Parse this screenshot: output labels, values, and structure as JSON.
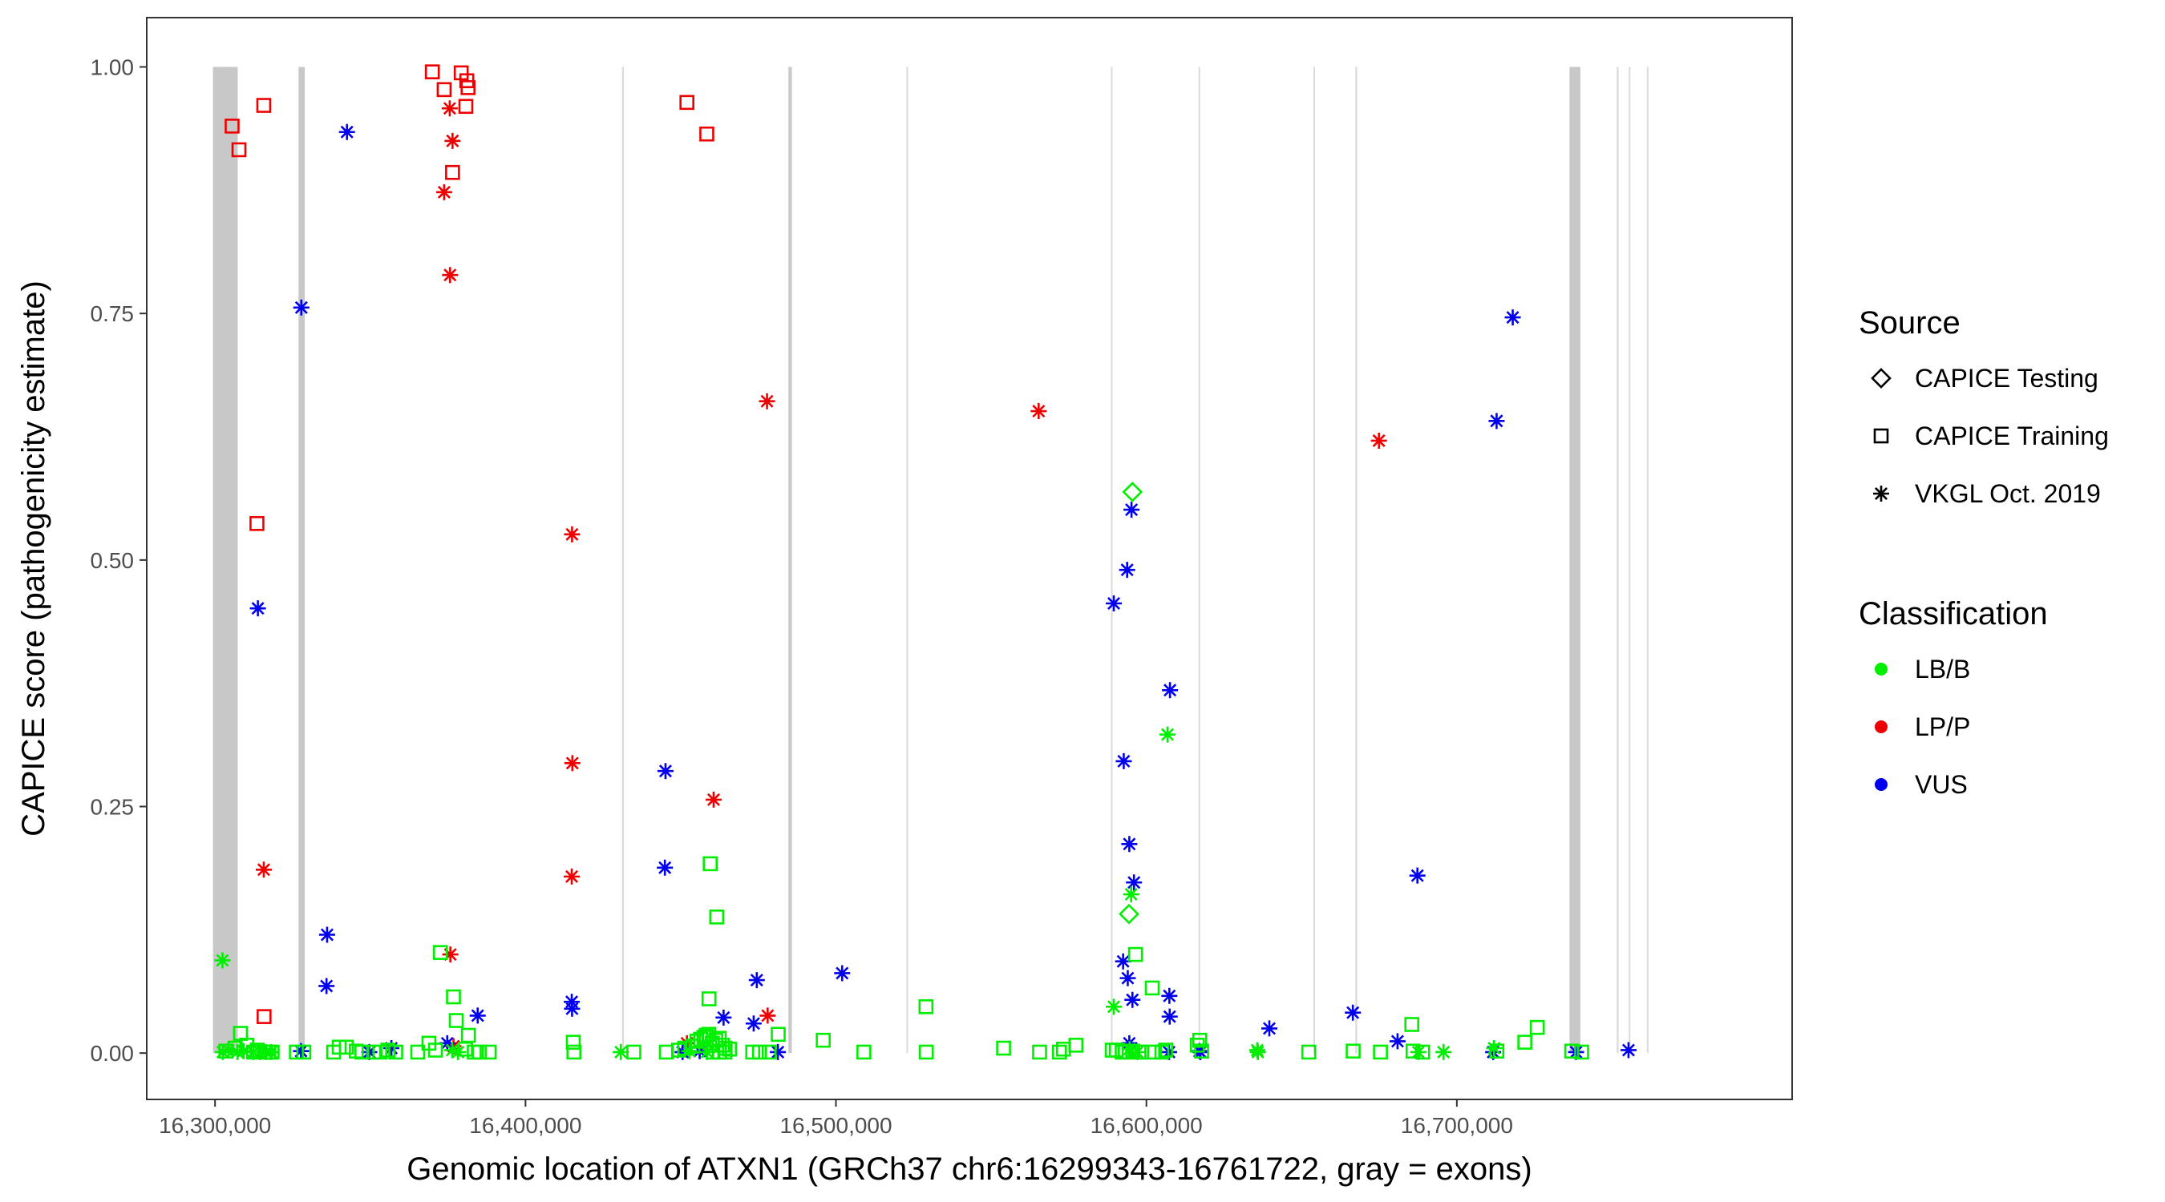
{
  "chart_data": {
    "type": "scatter",
    "title": "",
    "xlabel": "Genomic location of ATXN1 (GRCh37 chr6:16299343-16761722, gray = exons)",
    "ylabel": "CAPICE score (pathogenicity estimate)",
    "xlim": [
      16278000,
      16808000
    ],
    "ylim": [
      -0.047,
      1.05
    ],
    "x_ticks": [
      16300000,
      16400000,
      16500000,
      16600000,
      16700000
    ],
    "x_tick_labels": [
      "16,300,000",
      "16,400,000",
      "16,500,000",
      "16,600,000",
      "16,700,000"
    ],
    "y_ticks": [
      0,
      0.25,
      0.5,
      0.75,
      1.0
    ],
    "y_tick_labels": [
      "0.00",
      "0.25",
      "0.50",
      "0.75",
      "1.00"
    ],
    "grid": false,
    "exons": [
      {
        "start": 16299343,
        "end": 16307300
      },
      {
        "start": 16326900,
        "end": 16328900
      },
      {
        "start": 16431100,
        "end": 16431700
      },
      {
        "start": 16484700,
        "end": 16485800
      },
      {
        "start": 16522700,
        "end": 16523100
      },
      {
        "start": 16588600,
        "end": 16589100
      },
      {
        "start": 16616800,
        "end": 16617200
      },
      {
        "start": 16653800,
        "end": 16654200
      },
      {
        "start": 16667300,
        "end": 16667900
      },
      {
        "start": 16736300,
        "end": 16739800
      },
      {
        "start": 16751500,
        "end": 16752100
      },
      {
        "start": 16755400,
        "end": 16755900
      },
      {
        "start": 16761200,
        "end": 16761722
      }
    ],
    "legend": {
      "position": "right",
      "shape_title": "Source",
      "shape_entries": [
        {
          "label": "CAPICE Testing",
          "shape": "diamond"
        },
        {
          "label": "CAPICE Training",
          "shape": "square"
        },
        {
          "label": "VKGL Oct. 2019",
          "shape": "asterisk"
        }
      ],
      "color_title": "Classification",
      "color_entries": [
        {
          "label": "LB/B",
          "color": "#00ee00"
        },
        {
          "label": "LP/P",
          "color": "#ee0000"
        },
        {
          "label": "VUS",
          "color": "#0000ee"
        }
      ]
    },
    "series": [
      {
        "source": "CAPICE Training",
        "classification": "LP/P",
        "shape": "square",
        "color": "#ee0000",
        "points": [
          [
            16305500,
            0.94
          ],
          [
            16307700,
            0.916
          ],
          [
            16315700,
            0.961
          ],
          [
            16313500,
            0.537
          ],
          [
            16315800,
            0.037
          ],
          [
            16370000,
            0.995
          ],
          [
            16373800,
            0.977
          ],
          [
            16376500,
            0.893
          ],
          [
            16379300,
            0.994
          ],
          [
            16381100,
            0.986
          ],
          [
            16381500,
            0.979
          ],
          [
            16380800,
            0.96
          ],
          [
            16452000,
            0.964
          ],
          [
            16458400,
            0.932
          ]
        ]
      },
      {
        "source": "VKGL Oct. 2019",
        "classification": "LP/P",
        "shape": "asterisk",
        "color": "#ee0000",
        "points": [
          [
            16315700,
            0.186
          ],
          [
            16373800,
            0.873
          ],
          [
            16375600,
            0.958
          ],
          [
            16376500,
            0.925
          ],
          [
            16375700,
            0.789
          ],
          [
            16375800,
            0.1
          ],
          [
            16376800,
            0.007
          ],
          [
            16415000,
            0.526
          ],
          [
            16415100,
            0.294
          ],
          [
            16414900,
            0.179
          ],
          [
            16460600,
            0.257
          ],
          [
            16477800,
            0.661
          ],
          [
            16478000,
            0.038
          ],
          [
            16452000,
            0.01
          ],
          [
            16565300,
            0.651
          ],
          [
            16674900,
            0.621
          ]
        ]
      },
      {
        "source": "VKGL Oct. 2019",
        "classification": "VUS",
        "shape": "asterisk",
        "color": "#0000ee",
        "points": [
          [
            16342500,
            0.934
          ],
          [
            16327800,
            0.756
          ],
          [
            16313800,
            0.451
          ],
          [
            16336100,
            0.12
          ],
          [
            16335900,
            0.068
          ],
          [
            16384600,
            0.038
          ],
          [
            16374800,
            0.01
          ],
          [
            16327700,
            0.002
          ],
          [
            16349700,
            0.001
          ],
          [
            16356800,
            0.005
          ],
          [
            16414900,
            0.052
          ],
          [
            16415000,
            0.045
          ],
          [
            16445100,
            0.286
          ],
          [
            16444900,
            0.188
          ],
          [
            16474500,
            0.074
          ],
          [
            16463800,
            0.036
          ],
          [
            16473500,
            0.03
          ],
          [
            16450600,
            0.001
          ],
          [
            16456100,
            0.002
          ],
          [
            16481300,
            0.001
          ],
          [
            16502000,
            0.081
          ],
          [
            16589500,
            0.456
          ],
          [
            16593800,
            0.49
          ],
          [
            16595200,
            0.551
          ],
          [
            16607600,
            0.368
          ],
          [
            16592700,
            0.296
          ],
          [
            16594500,
            0.212
          ],
          [
            16596000,
            0.173
          ],
          [
            16592500,
            0.093
          ],
          [
            16594000,
            0.076
          ],
          [
            16595500,
            0.054
          ],
          [
            16607400,
            0.058
          ],
          [
            16607500,
            0.037
          ],
          [
            16594500,
            0.01
          ],
          [
            16607300,
            0.001
          ],
          [
            16617400,
            0.001
          ],
          [
            16617100,
            0.002
          ],
          [
            16639600,
            0.025
          ],
          [
            16666500,
            0.041
          ],
          [
            16680900,
            0.012
          ],
          [
            16687300,
            0.18
          ],
          [
            16712800,
            0.641
          ],
          [
            16718000,
            0.746
          ],
          [
            16711700,
            0.001
          ],
          [
            16738400,
            0.001
          ],
          [
            16755300,
            0.003
          ]
        ]
      },
      {
        "source": "CAPICE Training",
        "classification": "LB/B",
        "shape": "square",
        "color": "#00ee00",
        "points": [
          [
            16303500,
            0.002
          ],
          [
            16306500,
            0.005
          ],
          [
            16308200,
            0.02
          ],
          [
            16310200,
            0.008
          ],
          [
            16312400,
            0.001
          ],
          [
            16313600,
            0.003
          ],
          [
            16316300,
            0.001
          ],
          [
            16317300,
            0.001
          ],
          [
            16318400,
            0.001
          ],
          [
            16326200,
            0.001
          ],
          [
            16328600,
            0.001
          ],
          [
            16338200,
            0.001
          ],
          [
            16340000,
            0.006
          ],
          [
            16342300,
            0.006
          ],
          [
            16345500,
            0.002
          ],
          [
            16347300,
            0.001
          ],
          [
            16351100,
            0.001
          ],
          [
            16353100,
            0.001
          ],
          [
            16355700,
            0.003
          ],
          [
            16358200,
            0.001
          ],
          [
            16365300,
            0.001
          ],
          [
            16368900,
            0.01
          ],
          [
            16371000,
            0.003
          ],
          [
            16372600,
            0.102
          ],
          [
            16376800,
            0.057
          ],
          [
            16377700,
            0.033
          ],
          [
            16380700,
            0.004
          ],
          [
            16381600,
            0.018
          ],
          [
            16383500,
            0.001
          ],
          [
            16385100,
            0.001
          ],
          [
            16388300,
            0.001
          ],
          [
            16415400,
            0.011
          ],
          [
            16415600,
            0.001
          ],
          [
            16434900,
            0.001
          ],
          [
            16445400,
            0.001
          ],
          [
            16449300,
            0.003
          ],
          [
            16451300,
            0.005
          ],
          [
            16453900,
            0.007
          ],
          [
            16455200,
            0.012
          ],
          [
            16456400,
            0.014
          ],
          [
            16457500,
            0.016
          ],
          [
            16458200,
            0.018
          ],
          [
            16459100,
            0.055
          ],
          [
            16459500,
            0.192
          ],
          [
            16461600,
            0.138
          ],
          [
            16459000,
            0.019
          ],
          [
            16460200,
            0.01
          ],
          [
            16461300,
            0.013
          ],
          [
            16462400,
            0.015
          ],
          [
            16463500,
            0.008
          ],
          [
            16464300,
            0.005
          ],
          [
            16465700,
            0.004
          ],
          [
            16460400,
            0.001
          ],
          [
            16462500,
            0.001
          ],
          [
            16464200,
            0.001
          ],
          [
            16473200,
            0.001
          ],
          [
            16475400,
            0.001
          ],
          [
            16478500,
            0.001
          ],
          [
            16481400,
            0.019
          ],
          [
            16495900,
            0.013
          ],
          [
            16509000,
            0.001
          ],
          [
            16529000,
            0.047
          ],
          [
            16529100,
            0.001
          ],
          [
            16554000,
            0.005
          ],
          [
            16565600,
            0.001
          ],
          [
            16572000,
            0.001
          ],
          [
            16573300,
            0.004
          ],
          [
            16577300,
            0.008
          ],
          [
            16589000,
            0.003
          ],
          [
            16590300,
            0.003
          ],
          [
            16592200,
            0.001
          ],
          [
            16593200,
            0.001
          ],
          [
            16595600,
            0.002
          ],
          [
            16597600,
            0.001
          ],
          [
            16598500,
            0.001
          ],
          [
            16596500,
            0.1
          ],
          [
            16601900,
            0.066
          ],
          [
            16602600,
            0.001
          ],
          [
            16605000,
            0.001
          ],
          [
            16606200,
            0.003
          ],
          [
            16617200,
            0.013
          ],
          [
            16616400,
            0.008
          ],
          [
            16617800,
            0.002
          ],
          [
            16652300,
            0.001
          ],
          [
            16666600,
            0.002
          ],
          [
            16675400,
            0.001
          ],
          [
            16685500,
            0.029
          ],
          [
            16685900,
            0.002
          ],
          [
            16689000,
            0.001
          ],
          [
            16712900,
            0.002
          ],
          [
            16721900,
            0.011
          ],
          [
            16725900,
            0.026
          ],
          [
            16737000,
            0.002
          ],
          [
            16740200,
            0.001
          ]
        ]
      },
      {
        "source": "VKGL Oct. 2019",
        "classification": "LB/B",
        "shape": "asterisk",
        "color": "#00ee00",
        "points": [
          [
            16302400,
            0.094
          ],
          [
            16302500,
            0.001
          ],
          [
            16304300,
            0.003
          ],
          [
            16307200,
            0.001
          ],
          [
            16309200,
            0.002
          ],
          [
            16312300,
            0.001
          ],
          [
            16314500,
            0.001
          ],
          [
            16316400,
            0.001
          ],
          [
            16318000,
            0.001
          ],
          [
            16376400,
            0.003
          ],
          [
            16378300,
            0.001
          ],
          [
            16430700,
            0.001
          ],
          [
            16452800,
            0.002
          ],
          [
            16458500,
            0.001
          ],
          [
            16589500,
            0.047
          ],
          [
            16595100,
            0.161
          ],
          [
            16606800,
            0.323
          ],
          [
            16594600,
            0.004
          ],
          [
            16597100,
            0.001
          ],
          [
            16635700,
            0.003
          ],
          [
            16635900,
            0.001
          ],
          [
            16687600,
            0.001
          ],
          [
            16695700,
            0.001
          ],
          [
            16712000,
            0.005
          ]
        ]
      },
      {
        "source": "CAPICE Testing",
        "classification": "LB/B",
        "shape": "diamond",
        "color": "#00ee00",
        "points": [
          [
            16595500,
            0.569
          ],
          [
            16594400,
            0.141
          ]
        ]
      }
    ]
  }
}
